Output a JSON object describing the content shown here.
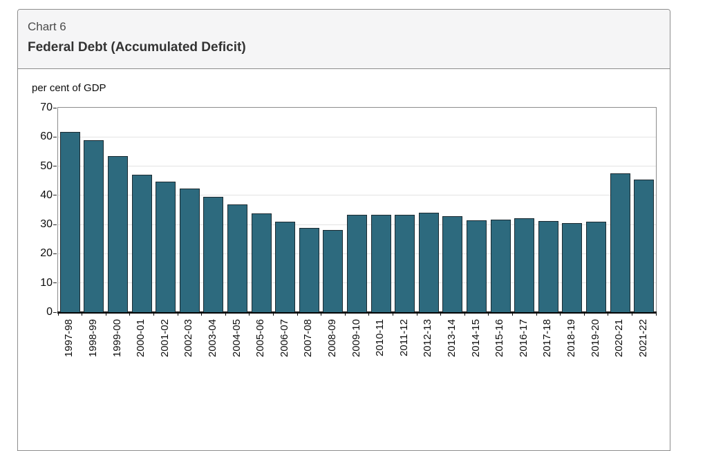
{
  "header": {
    "chart_number": "Chart 6",
    "title": "Federal Debt (Accumulated Deficit)"
  },
  "chart_data": {
    "type": "bar",
    "title": "Federal Debt (Accumulated Deficit)",
    "ylabel": "per cent of GDP",
    "xlabel": "",
    "ylim": [
      0,
      70
    ],
    "yticks": [
      0,
      10,
      20,
      30,
      40,
      50,
      60,
      70
    ],
    "grid": true,
    "legend": false,
    "bar_color": "#2d6a7e",
    "bar_edge_color": "#1b2a31",
    "categories": [
      "1997-98",
      "1998-99",
      "1999-00",
      "2000-01",
      "2001-02",
      "2002-03",
      "2003-04",
      "2004-05",
      "2005-06",
      "2006-07",
      "2007-08",
      "2008-09",
      "2009-10",
      "2010-11",
      "2011-12",
      "2012-13",
      "2013-14",
      "2014-15",
      "2015-16",
      "2016-17",
      "2017-18",
      "2018-19",
      "2019-20",
      "2020-21",
      "2021-22"
    ],
    "values": [
      61.7,
      59.0,
      53.5,
      47.0,
      44.8,
      42.4,
      39.5,
      37.0,
      33.9,
      31.1,
      28.9,
      28.2,
      33.3,
      33.4,
      33.3,
      34.0,
      32.8,
      31.4,
      31.8,
      32.1,
      31.3,
      30.6,
      31.1,
      47.5,
      45.5
    ]
  }
}
